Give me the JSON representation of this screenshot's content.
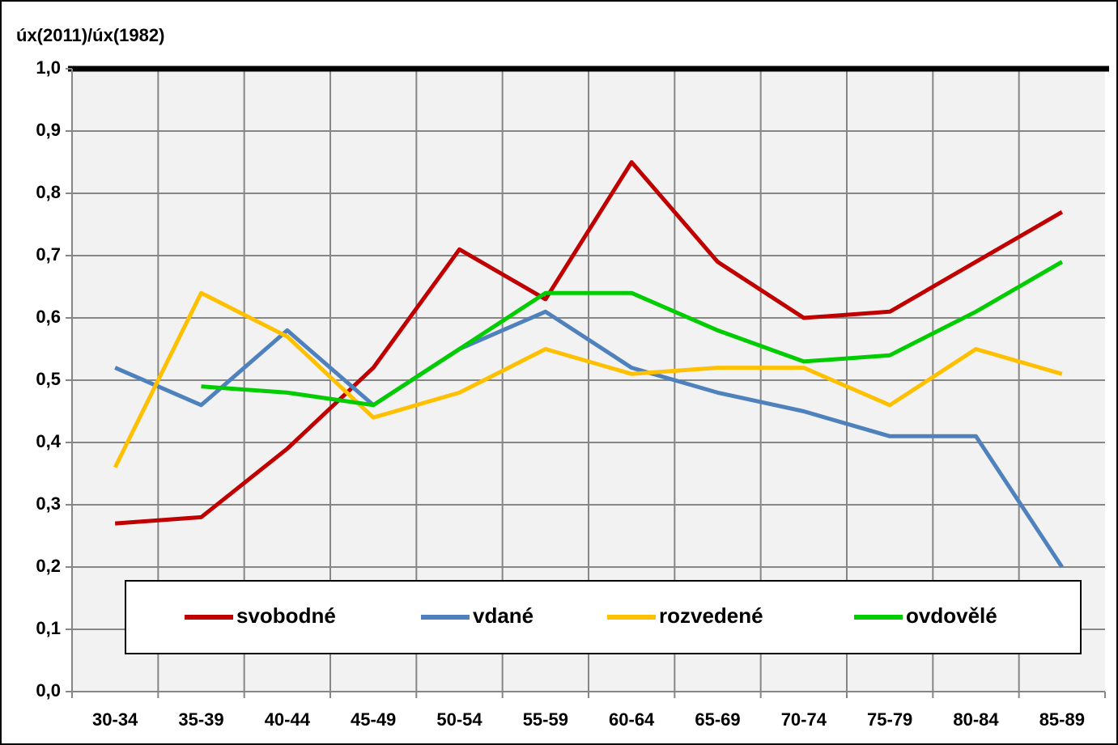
{
  "chart_data": {
    "type": "line",
    "y_axis_label": "úx(2011)/úx(1982)",
    "categories": [
      "30-34",
      "35-39",
      "40-44",
      "45-49",
      "50-54",
      "55-59",
      "60-64",
      "65-69",
      "70-74",
      "75-79",
      "80-84",
      "85-89"
    ],
    "series": [
      {
        "name": "svobodné",
        "color": "#c00000",
        "values": [
          0.27,
          0.28,
          0.39,
          0.52,
          0.71,
          0.63,
          0.85,
          0.69,
          0.6,
          0.61,
          0.69,
          0.77
        ]
      },
      {
        "name": "vdané",
        "color": "#4f81bd",
        "values": [
          0.52,
          0.46,
          0.58,
          0.46,
          0.55,
          0.61,
          0.52,
          0.48,
          0.45,
          0.41,
          0.41,
          0.2
        ]
      },
      {
        "name": "rozvedené",
        "color": "#ffc000",
        "values": [
          0.36,
          0.64,
          0.57,
          0.44,
          0.48,
          0.55,
          0.51,
          0.52,
          0.52,
          0.46,
          0.55,
          0.51
        ]
      },
      {
        "name": "ovdovělé",
        "color": "#00cc00",
        "values": [
          null,
          0.49,
          0.48,
          0.46,
          0.55,
          0.64,
          0.64,
          0.58,
          0.53,
          0.54,
          0.61,
          0.69
        ]
      }
    ],
    "ylim": [
      0,
      1
    ],
    "yticks": [
      {
        "value": 0,
        "label": "0,0"
      },
      {
        "value": 0.1,
        "label": "0,1"
      },
      {
        "value": 0.2,
        "label": "0,2"
      },
      {
        "value": 0.3,
        "label": "0,3"
      },
      {
        "value": 0.4,
        "label": "0,4"
      },
      {
        "value": 0.5,
        "label": "0,5"
      },
      {
        "value": 0.6,
        "label": "0,6"
      },
      {
        "value": 0.7,
        "label": "0,7"
      },
      {
        "value": 0.8,
        "label": "0,8"
      },
      {
        "value": 0.9,
        "label": "0,9"
      },
      {
        "value": 1,
        "label": "1,0"
      }
    ],
    "grid": true,
    "legend": "bottom"
  }
}
